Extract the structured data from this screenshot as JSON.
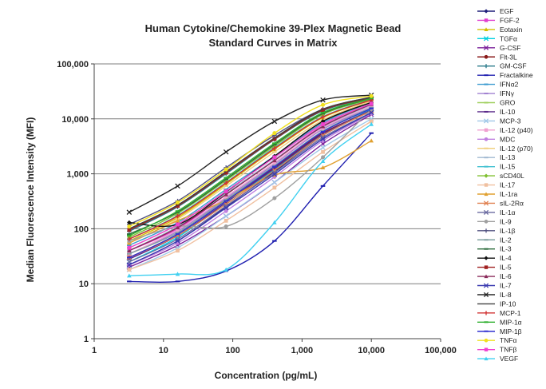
{
  "chart_data": {
    "type": "line",
    "title_lines": [
      "Human Cytokine/Chemokine 39-Plex Magnetic Bead",
      "Standard Curves in Matrix"
    ],
    "xlabel": "Concentration (pg/mL)",
    "ylabel": "Median Fluorescence Intensity (MFI)",
    "xscale": "log",
    "yscale": "log",
    "xlim": [
      1,
      100000
    ],
    "ylim": [
      1,
      100000
    ],
    "x_tick_labels": [
      "1",
      "10",
      "100",
      "1,000",
      "10,000",
      "100,000"
    ],
    "y_tick_labels": [
      "1",
      "10",
      "100",
      "1,000",
      "10,000",
      "100,000"
    ],
    "grid": "horizontal major",
    "legend_position": "right",
    "x": [
      3.2,
      16,
      80,
      400,
      2000,
      10000
    ],
    "series": [
      {
        "name": "EGF",
        "color": "#1f1f7a",
        "marker": "diamond",
        "values": [
          22,
          60,
          250,
          1100,
          5000,
          14000
        ]
      },
      {
        "name": "FGF-2",
        "color": "#e040d0",
        "marker": "square",
        "values": [
          40,
          100,
          420,
          1800,
          7500,
          18000
        ]
      },
      {
        "name": "Eotaxin",
        "color": "#d4c000",
        "marker": "triangle",
        "values": [
          60,
          160,
          650,
          2800,
          10500,
          22000
        ]
      },
      {
        "name": "TGFα",
        "color": "#00d0e0",
        "marker": "x",
        "values": [
          25,
          70,
          300,
          1200,
          5200,
          15000
        ]
      },
      {
        "name": "G-CSF",
        "color": "#7a1f9a",
        "marker": "x",
        "values": [
          20,
          50,
          170,
          700,
          3500,
          12000
        ]
      },
      {
        "name": "Flt-3L",
        "color": "#8a1a1a",
        "marker": "circle",
        "values": [
          30,
          80,
          320,
          1300,
          5500,
          14000
        ]
      },
      {
        "name": "GM-CSF",
        "color": "#2a7a8a",
        "marker": "plus",
        "values": [
          90,
          250,
          1000,
          4200,
          14000,
          24000
        ]
      },
      {
        "name": "Fractalkine",
        "color": "#2020b0",
        "marker": "dash",
        "values": [
          11,
          11,
          17,
          60,
          600,
          5500
        ]
      },
      {
        "name": "IFNα2",
        "color": "#3a9ad0",
        "marker": "dash",
        "values": [
          50,
          130,
          520,
          2100,
          8500,
          20000
        ]
      },
      {
        "name": "IFNγ",
        "color": "#a080d0",
        "marker": "dash",
        "values": [
          35,
          90,
          360,
          1500,
          6500,
          16000
        ]
      },
      {
        "name": "GRO",
        "color": "#a0d060",
        "marker": "dash",
        "values": [
          45,
          120,
          480,
          2000,
          8000,
          19000
        ]
      },
      {
        "name": "IL-10",
        "color": "#5a2a8a",
        "marker": "dash",
        "values": [
          28,
          75,
          300,
          1250,
          5300,
          14500
        ]
      },
      {
        "name": "MCP-3",
        "color": "#a0c8e8",
        "marker": "x",
        "values": [
          18,
          45,
          170,
          700,
          3000,
          10000
        ]
      },
      {
        "name": "IL-12 (p40)",
        "color": "#f0a0d0",
        "marker": "square",
        "values": [
          35,
          95,
          380,
          1600,
          6800,
          17000
        ]
      },
      {
        "name": "MDC",
        "color": "#c080e0",
        "marker": "circle",
        "values": [
          22,
          55,
          210,
          880,
          4000,
          12500
        ]
      },
      {
        "name": "IL-12 (p70)",
        "color": "#f0d080",
        "marker": "dash",
        "values": [
          55,
          150,
          600,
          2500,
          9500,
          21000
        ]
      },
      {
        "name": "IL-13",
        "color": "#a0b8d0",
        "marker": "dash",
        "values": [
          40,
          110,
          440,
          1800,
          7200,
          18000
        ]
      },
      {
        "name": "IL-15",
        "color": "#40c0d0",
        "marker": "dash",
        "values": [
          65,
          175,
          700,
          3000,
          11000,
          22500
        ]
      },
      {
        "name": "sCD40L",
        "color": "#80c030",
        "marker": "diamond",
        "values": [
          70,
          190,
          760,
          3200,
          12000,
          23000
        ]
      },
      {
        "name": "IL-17",
        "color": "#f0c0a0",
        "marker": "square",
        "values": [
          18,
          40,
          140,
          560,
          2500,
          9000
        ]
      },
      {
        "name": "IL-1ra",
        "color": "#e0a030",
        "marker": "triangle",
        "values": [
          55,
          140,
          330,
          950,
          1300,
          4000
        ]
      },
      {
        "name": "sIL-2Rα",
        "color": "#e08050",
        "marker": "x",
        "values": [
          30,
          75,
          280,
          1150,
          5000,
          14000
        ]
      },
      {
        "name": "IL-1α",
        "color": "#6a6aa0",
        "marker": "x",
        "values": [
          25,
          65,
          260,
          1050,
          4600,
          13000
        ]
      },
      {
        "name": "IL-9",
        "color": "#a0a0a0",
        "marker": "circle",
        "values": [
          60,
          110,
          110,
          360,
          2000,
          15000
        ]
      },
      {
        "name": "IL-1β",
        "color": "#505080",
        "marker": "plus",
        "values": [
          120,
          320,
          1300,
          5000,
          15000,
          25000
        ]
      },
      {
        "name": "IL-2",
        "color": "#80a0a0",
        "marker": "dash",
        "values": [
          35,
          85,
          340,
          1400,
          6000,
          16000
        ]
      },
      {
        "name": "IL-3",
        "color": "#2a6a3a",
        "marker": "dash",
        "values": [
          80,
          200,
          800,
          3400,
          12500,
          23500
        ]
      },
      {
        "name": "IL-4",
        "color": "#101010",
        "marker": "diamond",
        "values": [
          130,
          120,
          470,
          2100,
          9000,
          20000
        ]
      },
      {
        "name": "IL-5",
        "color": "#a02020",
        "marker": "square",
        "values": [
          95,
          260,
          1050,
          4300,
          14500,
          24000
        ]
      },
      {
        "name": "IL-6",
        "color": "#8a2a5a",
        "marker": "triangle",
        "values": [
          40,
          105,
          420,
          1750,
          7300,
          18500
        ]
      },
      {
        "name": "IL-7",
        "color": "#3a3ab0",
        "marker": "x",
        "values": [
          22,
          60,
          240,
          980,
          4300,
          13000
        ]
      },
      {
        "name": "IL-8",
        "color": "#222222",
        "marker": "x",
        "values": [
          200,
          600,
          2500,
          9000,
          22000,
          27000
        ]
      },
      {
        "name": "IP-10",
        "color": "#404040",
        "marker": "none",
        "values": [
          100,
          270,
          1100,
          4500,
          15000,
          24500
        ]
      },
      {
        "name": "MCP-1",
        "color": "#d03030",
        "marker": "plus",
        "values": [
          65,
          170,
          680,
          2900,
          10800,
          22000
        ]
      },
      {
        "name": "MIP-1α",
        "color": "#30b030",
        "marker": "dash",
        "values": [
          75,
          210,
          850,
          3600,
          13000,
          23500
        ]
      },
      {
        "name": "MIP-1β",
        "color": "#3030d0",
        "marker": "dash",
        "values": [
          30,
          80,
          320,
          1350,
          5800,
          15500
        ]
      },
      {
        "name": "TNFα",
        "color": "#f0e020",
        "marker": "circle",
        "values": [
          110,
          300,
          1200,
          5500,
          18000,
          26000
        ]
      },
      {
        "name": "TNFβ",
        "color": "#f040d0",
        "marker": "square",
        "values": [
          45,
          120,
          480,
          2000,
          8000,
          19000
        ]
      },
      {
        "name": "VEGF",
        "color": "#40d0f0",
        "marker": "triangle",
        "values": [
          14,
          15,
          18,
          130,
          1700,
          8000
        ]
      }
    ]
  }
}
